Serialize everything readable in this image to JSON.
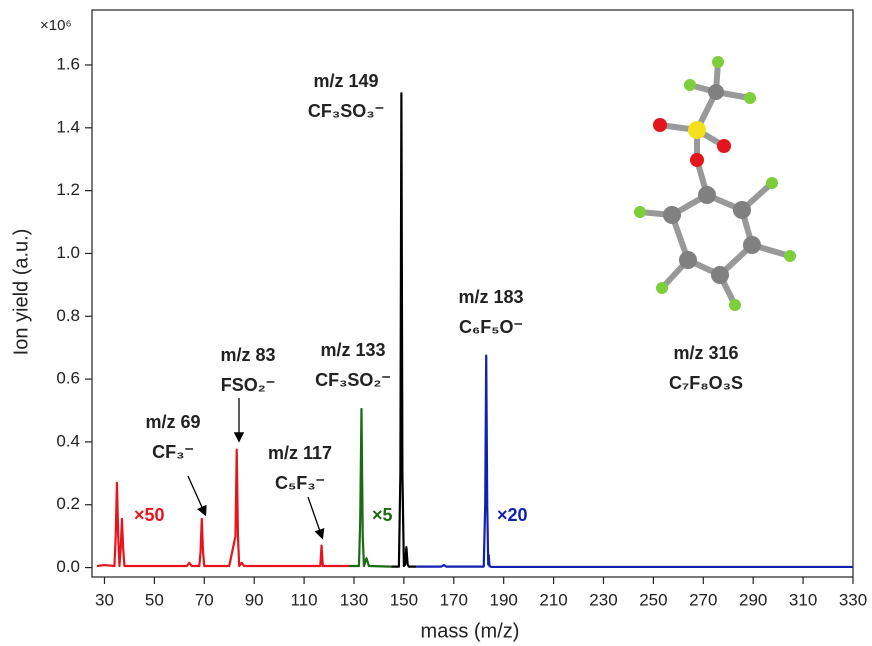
{
  "chart_data": {
    "type": "line",
    "xlabel": "mass (m/z)",
    "ylabel": "Ion yield (a.u.)",
    "y_multiplier": "×10⁶",
    "xlim": [
      25,
      330
    ],
    "ylim": [
      -0.03,
      1.775
    ],
    "xticks": [
      30,
      50,
      70,
      90,
      110,
      130,
      150,
      170,
      190,
      210,
      230,
      250,
      270,
      290,
      310,
      330
    ],
    "yticks": [
      {
        "value": 0,
        "label": "0.0"
      },
      0.2,
      0.4,
      0.6,
      0.8,
      {
        "value": 1,
        "label": "1.0"
      },
      1.2,
      1.4,
      1.6
    ],
    "series": [
      {
        "color": "#e8141b",
        "scale_label": "×50",
        "x": [
          27,
          30,
          34,
          34.5,
          35,
          35.5,
          36,
          36.5,
          37,
          37.5,
          38,
          50,
          63,
          64,
          65,
          68,
          68.5,
          69,
          69.5,
          70,
          80,
          82.5,
          83,
          83.5,
          84,
          85,
          86,
          100,
          116.5,
          117,
          117.5,
          118,
          128
        ],
        "values": [
          0.005,
          0.008,
          0.005,
          0.1,
          0.27,
          0.1,
          0.005,
          0.06,
          0.155,
          0.06,
          0.005,
          0.005,
          0.005,
          0.015,
          0.005,
          0.005,
          0.05,
          0.155,
          0.05,
          0.005,
          0.005,
          0.1,
          0.375,
          0.1,
          0.005,
          0.015,
          0.005,
          0.005,
          0.005,
          0.07,
          0.005,
          0.005,
          0.005
        ]
      },
      {
        "color": "#1a6b12",
        "scale_label": "×5",
        "x": [
          128,
          132,
          132.5,
          133,
          133.5,
          134,
          135,
          136,
          145
        ],
        "values": [
          0.005,
          0.005,
          0.15,
          0.505,
          0.1,
          0.005,
          0.03,
          0.005,
          0.003
        ]
      },
      {
        "color": "#000000",
        "x": [
          145,
          148,
          148.6,
          149,
          149.4,
          150,
          150.5,
          151,
          151.5,
          152,
          155
        ],
        "values": [
          0.003,
          0.003,
          0.3,
          1.51,
          0.3,
          0.005,
          0.01,
          0.065,
          0.01,
          0.003,
          0.003
        ]
      },
      {
        "color": "#1020b0",
        "scale_label": "×20",
        "x": [
          155,
          165,
          166,
          167,
          182,
          182.6,
          183,
          183.4,
          183.8,
          184,
          184.3,
          185,
          200,
          330
        ],
        "values": [
          0.003,
          0.003,
          0.008,
          0.003,
          0.003,
          0.2,
          0.675,
          0.2,
          0.01,
          0.04,
          0.005,
          0.002,
          0.002,
          0.002
        ]
      }
    ],
    "annotations": [
      [
        "m/z 149",
        "CF₃SO₃⁻"
      ],
      [
        "m/z 183",
        "C₆F₅O⁻"
      ],
      [
        "m/z 133",
        "CF₃SO₂⁻"
      ],
      [
        "m/z 83",
        "FSO₂⁻"
      ],
      [
        "m/z 69",
        "CF₃⁻"
      ],
      [
        "m/z 117",
        "C₅F₃⁻"
      ],
      [
        "m/z 316",
        "C₇F₈O₃S"
      ]
    ]
  }
}
